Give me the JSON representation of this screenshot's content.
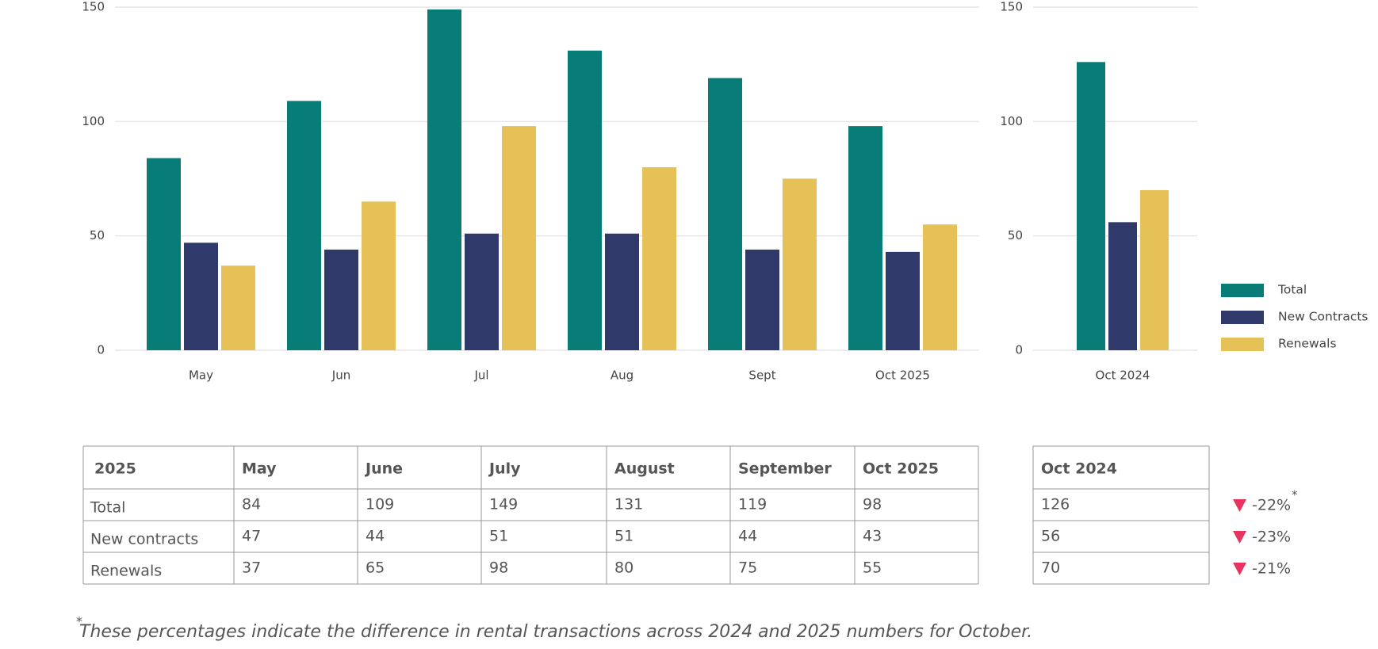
{
  "chart_data": [
    {
      "type": "bar",
      "categories": [
        "May",
        "Jun",
        "Jul",
        "Aug",
        "Sept",
        "Oct 2025"
      ],
      "series": [
        {
          "color": "#087d78",
          "values": [
            84,
            109,
            149,
            131,
            119,
            98
          ]
        },
        {
          "color": "#2f3a6b",
          "values": [
            47,
            44,
            51,
            51,
            44,
            43
          ]
        },
        {
          "color": "#e5c158",
          "values": [
            37,
            65,
            98,
            80,
            75,
            55
          ]
        }
      ],
      "ylim": [
        0,
        150
      ],
      "yticks": [
        0,
        50,
        100,
        150
      ],
      "grid": true
    },
    {
      "type": "bar",
      "categories": [
        "Oct 2024"
      ],
      "series": [
        {
          "name": "Total",
          "color": "#087d78",
          "values": [
            126
          ]
        },
        {
          "name": "New Contracts",
          "color": "#2f3a6b",
          "values": [
            56
          ]
        },
        {
          "name": "Renewals",
          "color": "#e5c158",
          "values": [
            70
          ]
        }
      ],
      "ylim": [
        0,
        150
      ],
      "yticks": [
        0,
        50,
        100,
        150
      ],
      "grid": true,
      "legend": "right"
    }
  ],
  "table": {
    "header": [
      "2025",
      "May",
      "June",
      "July",
      "August",
      "September",
      "Oct 2025"
    ],
    "row_labels": [
      "Total",
      "New contracts",
      "Renewals"
    ]
  },
  "comparison": {
    "header": "Oct 2024",
    "changes": [
      "-22%",
      "-23%",
      "-21%"
    ],
    "change_color": "#e8325f"
  },
  "footnote": {
    "marker": "*",
    "text": "These percentages indicate the difference in rental transactions across 2024 and 2025 numbers for October."
  }
}
